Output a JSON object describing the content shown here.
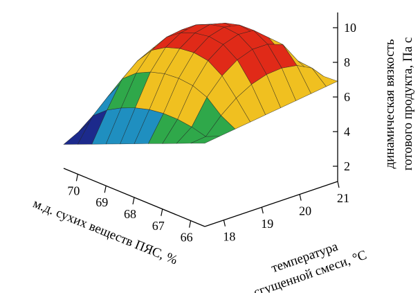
{
  "chart_data": {
    "type": "surface",
    "title": "",
    "z_label": [
      "динамическая вязкость",
      "готового продукта, Па с"
    ],
    "x_label": [
      "температура",
      "сгущенной смеси, °С"
    ],
    "y_label": "м.д. сухих веществ ПЯС, %",
    "x_ticks": [
      "18",
      "19",
      "20",
      "21"
    ],
    "y_ticks": [
      "70",
      "69",
      "68",
      "67",
      "66"
    ],
    "z_ticks": [
      "2",
      "4",
      "6",
      "8",
      "10"
    ],
    "x_range": [
      17.5,
      21
    ],
    "y_range": [
      65.5,
      70.5
    ],
    "z_range": [
      1.5,
      10.8
    ],
    "surface": {
      "x_grid": [
        17.5,
        17.9,
        18.3,
        18.7,
        19.1,
        19.5,
        19.9,
        20.3,
        20.7,
        21.0
      ],
      "y_grid": [
        65.5,
        66.0,
        66.5,
        67.0,
        67.5,
        68.0,
        68.5,
        69.0,
        69.5,
        70.0,
        70.5
      ],
      "peak_value": 10.0,
      "peak_at": {
        "x": 19.6,
        "y": 67.2
      },
      "corner_values": {
        "x17.5_y70.5": 2.5,
        "x21_y70.5": 6.5,
        "x17.5_y65.5": 6.0,
        "x21_y65.5": 7.0
      }
    },
    "color_bands": [
      {
        "below": 4.0,
        "color": "#1c2a8c"
      },
      {
        "below": 5.3,
        "color": "#1f8fc0"
      },
      {
        "below": 6.6,
        "color": "#2fa84a"
      },
      {
        "below": 8.5,
        "color": "#f0c020"
      },
      {
        "below": 99,
        "color": "#e02a18"
      }
    ],
    "grid": false,
    "legend": "none"
  }
}
